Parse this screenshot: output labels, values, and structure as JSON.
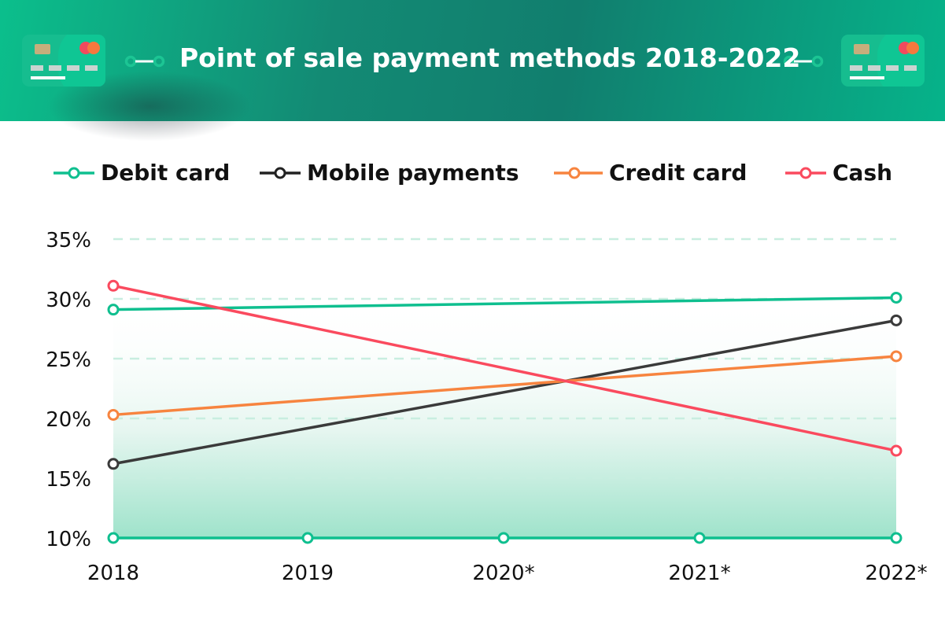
{
  "header": {
    "title": "Point of sale payment methods 2018-2022",
    "icons": [
      "credit-card-icon",
      "connector-icon"
    ]
  },
  "chart_data": {
    "type": "line",
    "title": "Point of sale payment methods 2018-2022",
    "categories": [
      "2018",
      "2019",
      "2020*",
      "2021*",
      "2022*"
    ],
    "y_ticks": [
      "10%",
      "15%",
      "20%",
      "25%",
      "30%",
      "35%"
    ],
    "ylim": [
      10,
      35
    ],
    "grid": "horizontal dashed",
    "legend_position": "top",
    "series": [
      {
        "name": "Debit card",
        "color": "#0fbf8f",
        "x": [
          "2018",
          "2022*"
        ],
        "values": [
          29.1,
          30.1
        ]
      },
      {
        "name": "Mobile payments",
        "color": "#3a3a3a",
        "x": [
          "2018",
          "2022*"
        ],
        "values": [
          16.2,
          28.2
        ]
      },
      {
        "name": "Credit card",
        "color": "#f7843f",
        "x": [
          "2018",
          "2022*"
        ],
        "values": [
          20.3,
          25.2
        ]
      },
      {
        "name": "Cash",
        "color": "#fa4a5e",
        "x": [
          "2018",
          "2022*"
        ],
        "values": [
          31.1,
          17.3
        ]
      }
    ]
  }
}
